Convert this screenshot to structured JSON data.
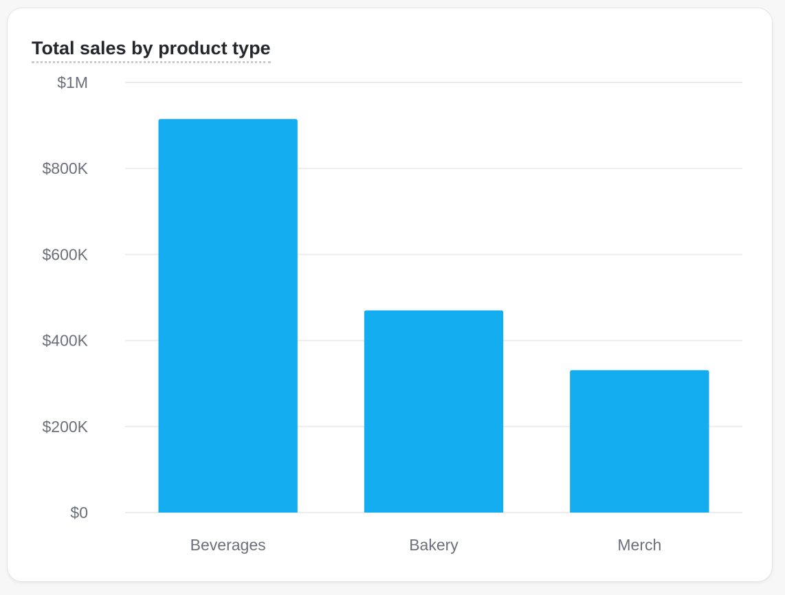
{
  "chart_data": {
    "type": "bar",
    "title": "Total sales by product type",
    "xlabel": "",
    "ylabel": "",
    "categories": [
      "Beverages",
      "Bakery",
      "Merch"
    ],
    "values": [
      915000,
      470000,
      331000
    ],
    "ylim": [
      0,
      1000000
    ],
    "yticks": [
      {
        "value": 0,
        "label": "$0"
      },
      {
        "value": 200000,
        "label": "$200K"
      },
      {
        "value": 400000,
        "label": "$400K"
      },
      {
        "value": 600000,
        "label": "$600K"
      },
      {
        "value": 800000,
        "label": "$800K"
      },
      {
        "value": 1000000,
        "label": "$1M"
      }
    ],
    "grid": true,
    "legend": "none",
    "colors": {
      "bar": "#14adf0",
      "grid": "#ececef",
      "axis_text": "#6b6f7b",
      "title": "#25272c"
    }
  }
}
